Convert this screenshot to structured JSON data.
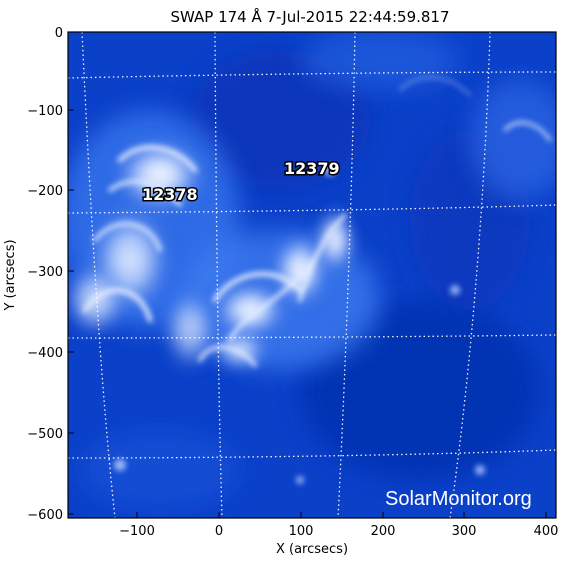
{
  "title": "SWAP 174 Å  7-Jul-2015 22:44:59.817",
  "watermark": "SolarMonitor.org",
  "x_axis": {
    "label": "X (arcsecs)",
    "ticks": [
      "−100",
      "0",
      "100",
      "200",
      "300",
      "400"
    ]
  },
  "y_axis": {
    "label": "Y (arcsecs)",
    "ticks": [
      "0",
      "−100",
      "−200",
      "−300",
      "−400",
      "−500",
      "−600"
    ]
  },
  "regions": [
    {
      "id": "ar-12378",
      "label": "12378"
    },
    {
      "id": "ar-12379",
      "label": "12379"
    }
  ],
  "colors": {
    "background": "#ffffff",
    "image_base": "#0a3fc8",
    "image_bright": "#e8f0ff",
    "grid": "#ffffff",
    "text": "#000000"
  }
}
